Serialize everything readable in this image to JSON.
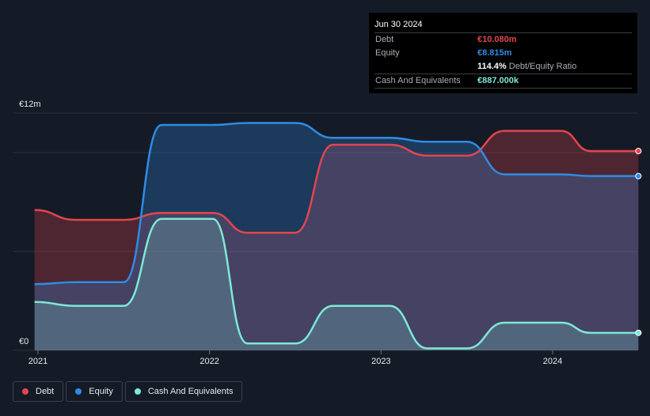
{
  "chart_data": {
    "type": "area",
    "currency_label_top": "€12m",
    "currency_label_bottom": "€0",
    "ylim": [
      0,
      12
    ],
    "xlim": [
      2020.98,
      2024.5
    ],
    "x_ticks": [
      {
        "value": 2021,
        "label": "2021"
      },
      {
        "value": 2022,
        "label": "2022"
      },
      {
        "value": 2023,
        "label": "2023"
      },
      {
        "value": 2024,
        "label": "2024"
      }
    ],
    "series": [
      {
        "name": "Debt",
        "color": "#e3454f",
        "points": [
          [
            2020.98,
            7.1
          ],
          [
            2021.22,
            6.6
          ],
          [
            2021.5,
            6.6
          ],
          [
            2021.72,
            6.95
          ],
          [
            2022.02,
            6.95
          ],
          [
            2022.22,
            5.95
          ],
          [
            2022.5,
            5.95
          ],
          [
            2022.72,
            10.4
          ],
          [
            2023.05,
            10.4
          ],
          [
            2023.27,
            9.85
          ],
          [
            2023.5,
            9.85
          ],
          [
            2023.72,
            11.1
          ],
          [
            2024.05,
            11.1
          ],
          [
            2024.22,
            10.08
          ],
          [
            2024.5,
            10.08
          ]
        ]
      },
      {
        "name": "Equity",
        "color": "#2f8be6",
        "points": [
          [
            2020.98,
            3.35
          ],
          [
            2021.22,
            3.45
          ],
          [
            2021.5,
            3.45
          ],
          [
            2021.72,
            11.4
          ],
          [
            2022.02,
            11.4
          ],
          [
            2022.22,
            11.5
          ],
          [
            2022.5,
            11.5
          ],
          [
            2022.72,
            10.75
          ],
          [
            2023.05,
            10.75
          ],
          [
            2023.27,
            10.55
          ],
          [
            2023.5,
            10.55
          ],
          [
            2023.72,
            8.9
          ],
          [
            2024.05,
            8.9
          ],
          [
            2024.22,
            8.815
          ],
          [
            2024.5,
            8.815
          ]
        ]
      },
      {
        "name": "Cash And Equivalents",
        "color": "#7ee8d6",
        "points": [
          [
            2020.98,
            2.45
          ],
          [
            2021.22,
            2.25
          ],
          [
            2021.5,
            2.25
          ],
          [
            2021.72,
            6.65
          ],
          [
            2022.02,
            6.65
          ],
          [
            2022.22,
            0.35
          ],
          [
            2022.5,
            0.35
          ],
          [
            2022.72,
            2.25
          ],
          [
            2023.05,
            2.25
          ],
          [
            2023.27,
            0.1
          ],
          [
            2023.5,
            0.1
          ],
          [
            2023.72,
            1.4
          ],
          [
            2024.05,
            1.4
          ],
          [
            2024.22,
            0.887
          ],
          [
            2024.5,
            0.887
          ]
        ]
      }
    ],
    "tooltip": {
      "date": "Jun 30 2024",
      "rows": [
        {
          "label": "Debt",
          "value": "€10.080m",
          "color": "#e3454f"
        },
        {
          "label": "Equity",
          "value": "€8.815m",
          "color": "#2f8be6"
        },
        {
          "label": "",
          "value": "114.4%",
          "suffix": "Debt/Equity Ratio",
          "color": "#ffffff"
        },
        {
          "label": "Cash And Equivalents",
          "value": "€887.000k",
          "color": "#7ee8d6"
        }
      ]
    },
    "legend": [
      {
        "label": "Debt",
        "color": "#e3454f"
      },
      {
        "label": "Equity",
        "color": "#2f8be6"
      },
      {
        "label": "Cash And Equivalents",
        "color": "#7ee8d6"
      }
    ]
  }
}
